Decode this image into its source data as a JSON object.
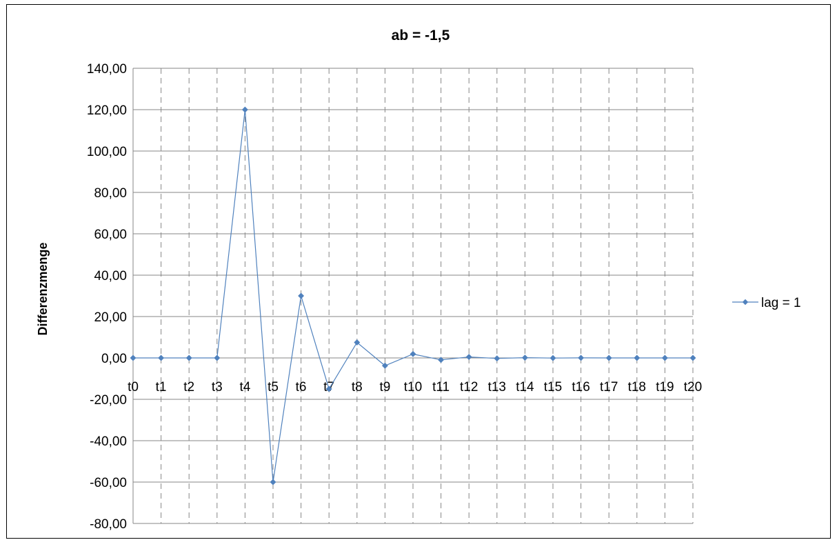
{
  "chart_data": {
    "type": "line",
    "title": "ab = -1,5",
    "xlabel": "",
    "ylabel": "Differenzmenge",
    "categories": [
      "t0",
      "t1",
      "t2",
      "t3",
      "t4",
      "t5",
      "t6",
      "t7",
      "t8",
      "t9",
      "t10",
      "t11",
      "t12",
      "t13",
      "t14",
      "t15",
      "t16",
      "t17",
      "t18",
      "t19",
      "t20"
    ],
    "series": [
      {
        "name": "lag = 1",
        "color": "#4F81BD",
        "marker": "diamond",
        "values": [
          0,
          0,
          0,
          0,
          120,
          -60,
          30,
          -15,
          7.5,
          -3.75,
          1.88,
          -0.94,
          0.47,
          -0.23,
          0.12,
          -0.06,
          0.03,
          -0.01,
          0.01,
          0,
          0
        ]
      }
    ],
    "ylim": [
      -80,
      140
    ],
    "yticks": [
      140,
      120,
      100,
      80,
      60,
      40,
      20,
      0,
      -20,
      -40,
      -60,
      -80
    ],
    "ytick_labels": [
      "140,00",
      "120,00",
      "100,00",
      "80,00",
      "60,00",
      "40,00",
      "20,00",
      "0,00",
      "-20,00",
      "-40,00",
      "-60,00",
      "-80,00"
    ],
    "grid": {
      "horizontal": "solid",
      "vertical": "dashed"
    },
    "legend_position": "right"
  }
}
